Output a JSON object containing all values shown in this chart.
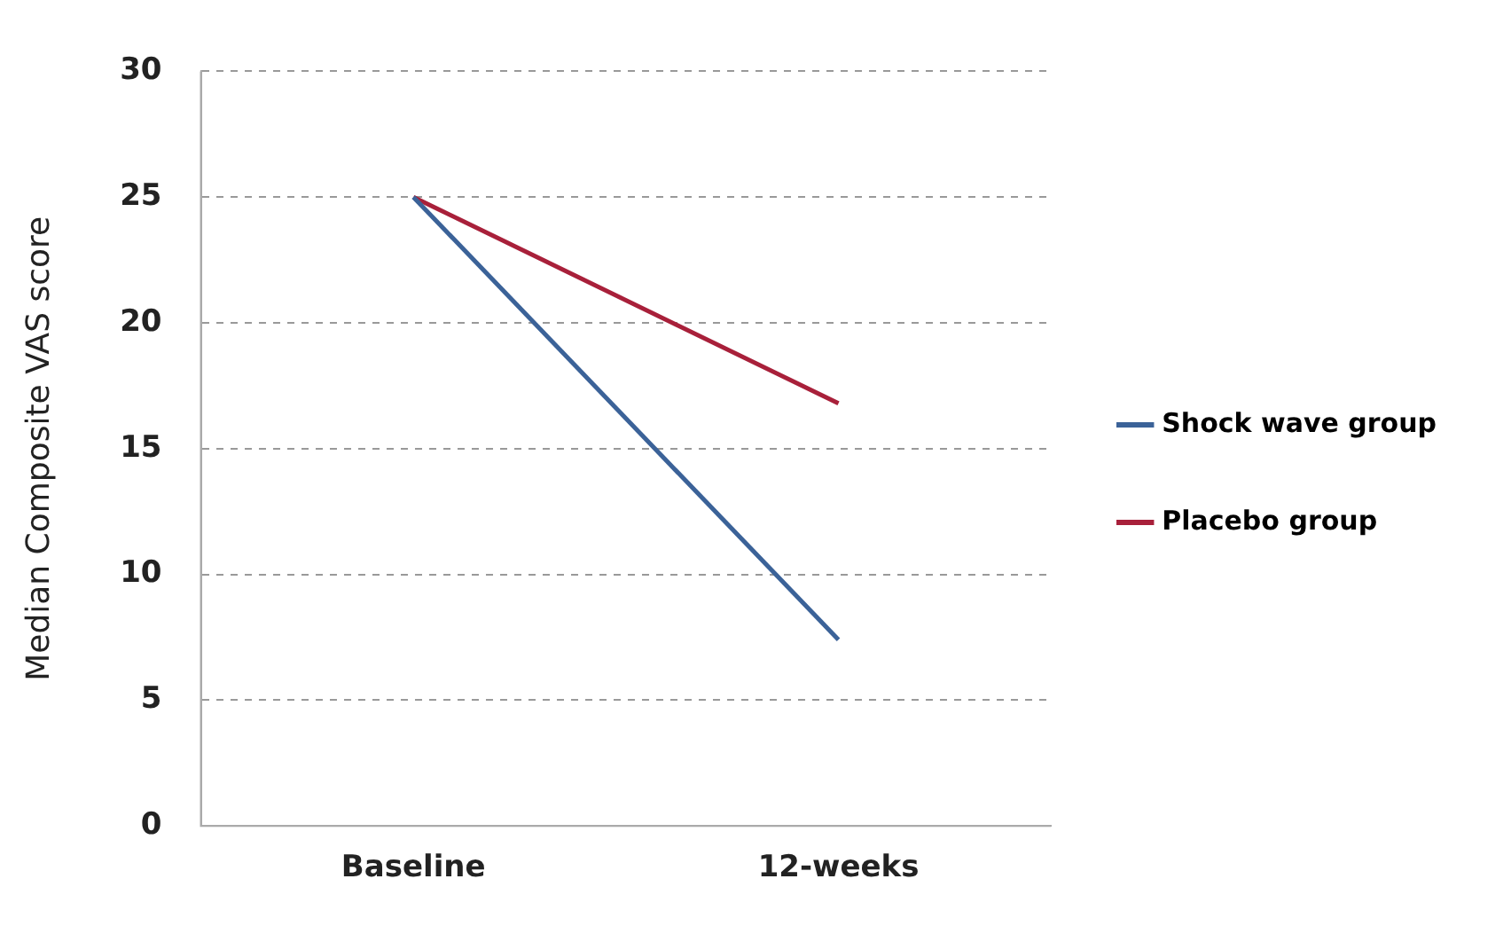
{
  "chart_data": {
    "type": "line",
    "ylabel": "Median Composite VAS score",
    "categories": [
      "Baseline",
      "12-weeks"
    ],
    "series": [
      {
        "name": "Shock wave group",
        "color": "#3b6298",
        "values": [
          25,
          7.4
        ]
      },
      {
        "name": "Placebo group",
        "color": "#a8203a",
        "values": [
          25,
          16.8
        ]
      }
    ],
    "ylim": [
      0,
      30
    ],
    "yticks": [
      0,
      5,
      10,
      15,
      20,
      25,
      30
    ],
    "grid": "y",
    "legend": "right",
    "marker": "none",
    "line_style": "solid"
  }
}
